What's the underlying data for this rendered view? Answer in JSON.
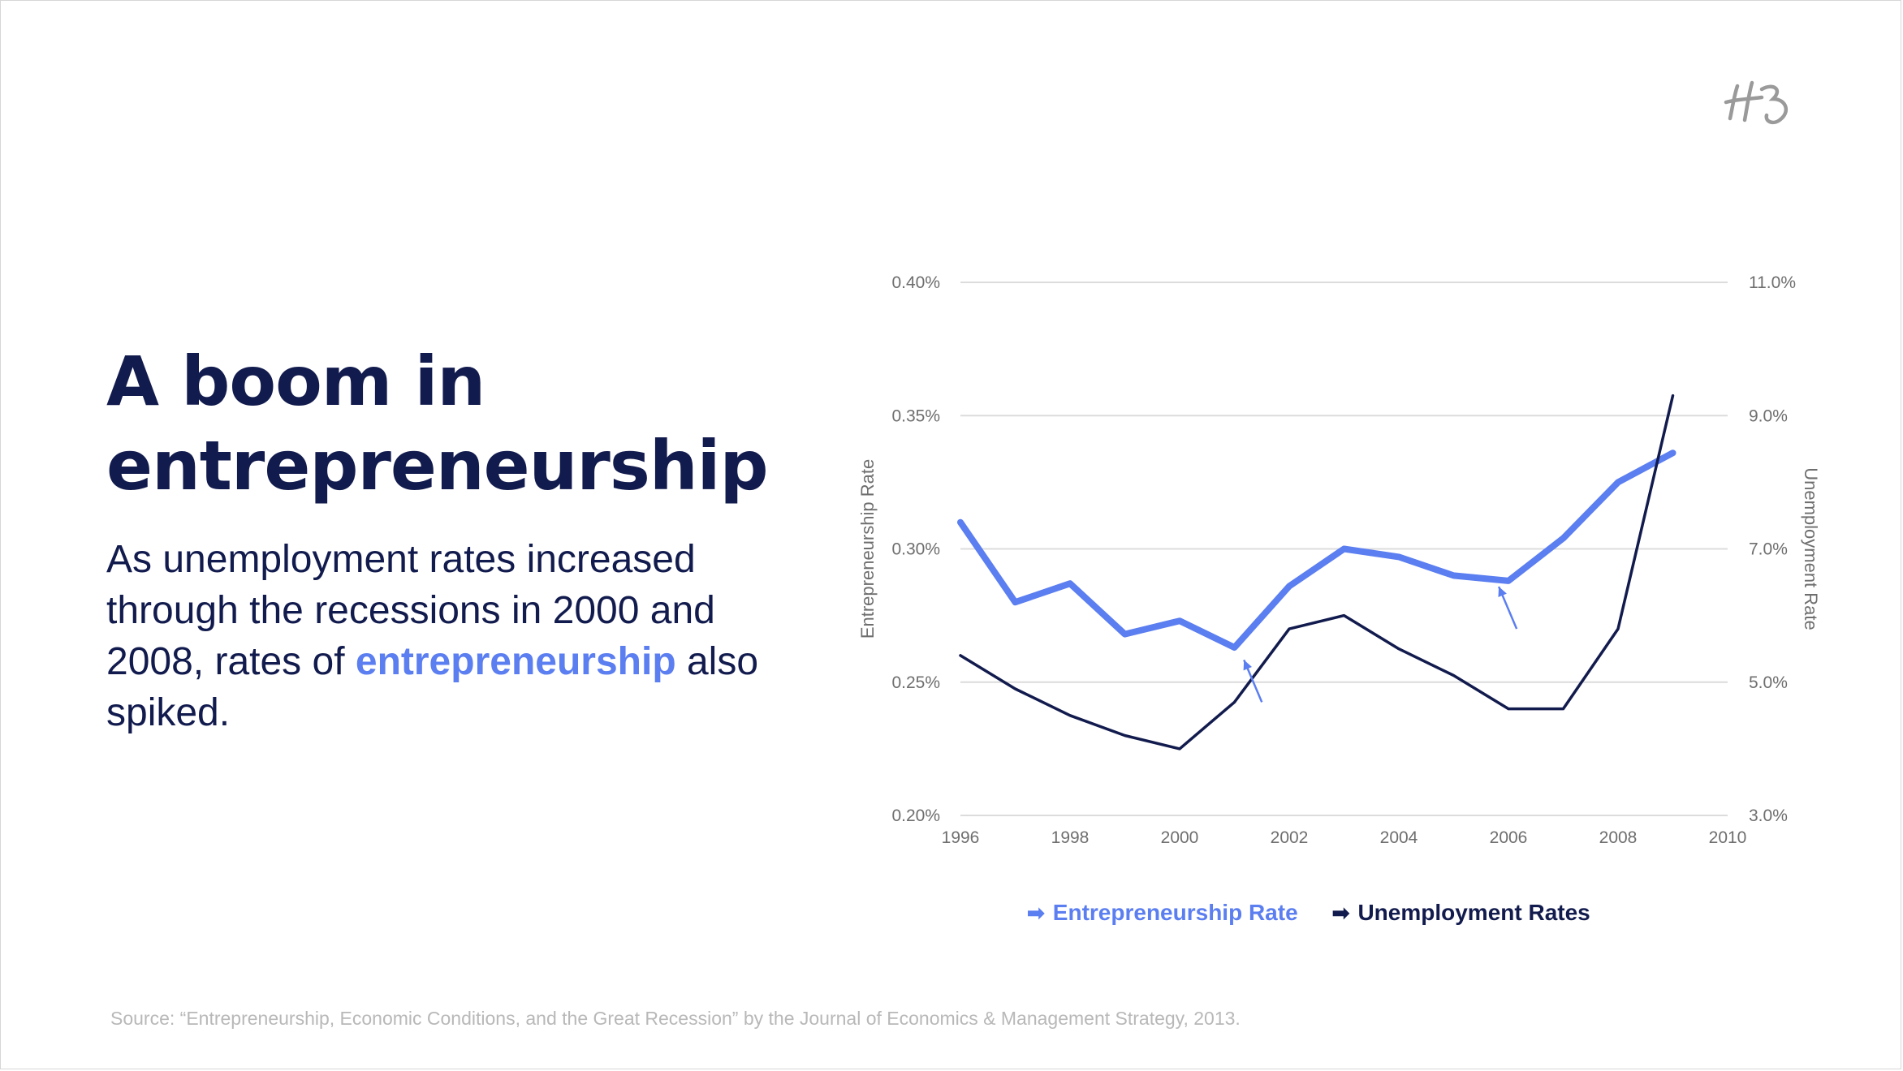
{
  "headline": {
    "line1": "A boom in",
    "line2": "entrepreneurship"
  },
  "body": {
    "part1": "As unemployment rates increased through the recessions in 2000 and 2008, rates of ",
    "highlight": "entrepreneurship",
    "part2": " also spiked."
  },
  "logo": {
    "text": "HB",
    "icon": "hb-logo-icon"
  },
  "colors": {
    "navy": "#121b4d",
    "accent": "#5b7ef0",
    "grid": "#dcdcdc",
    "axis_text": "#6e6e6e",
    "source": "#b8b8b8"
  },
  "legend": {
    "items": [
      {
        "label": "Entrepreneurship Rate",
        "icon": "arrow-right-icon",
        "color": "#5b7ef0"
      },
      {
        "label": "Unemployment Rates",
        "icon": "arrow-right-icon",
        "color": "#121b4d"
      }
    ]
  },
  "source": "Source: “Entrepreneurship, Economic Conditions, and the Great Recession” by the Journal of Economics & Management Strategy, 2013.",
  "chart_data": {
    "type": "line",
    "title": "",
    "xlabel": "",
    "ylabel": "Entrepreneurship Rate",
    "y2label": "Unemployment Rate",
    "xlim": [
      1996,
      2010
    ],
    "ylim": [
      0.2,
      0.4
    ],
    "y2lim": [
      3.0,
      11.0
    ],
    "grid": true,
    "legend_position": "bottom",
    "x_ticks": [
      "1996",
      "1998",
      "2000",
      "2002",
      "2004",
      "2006",
      "2008",
      "2010"
    ],
    "y_ticks": [
      "0.20%",
      "0.25%",
      "0.30%",
      "0.35%",
      "0.40%"
    ],
    "y2_ticks": [
      "3.0%",
      "5.0%",
      "7.0%",
      "9.0%",
      "11.0%"
    ],
    "series": [
      {
        "name": "Entrepreneurship Rate",
        "axis": "left",
        "color": "#5b7ef0",
        "x": [
          1996,
          1997,
          1998,
          1999,
          2000,
          2001,
          2002,
          2003,
          2004,
          2005,
          2006,
          2007,
          2008,
          2009
        ],
        "y": [
          0.31,
          0.28,
          0.287,
          0.268,
          0.273,
          0.263,
          0.286,
          0.3,
          0.297,
          0.29,
          0.288,
          0.304,
          0.325,
          0.336
        ]
      },
      {
        "name": "Unemployment Rates",
        "axis": "right",
        "color": "#121b4d",
        "x": [
          1996,
          1997,
          1998,
          1999,
          2000,
          2001,
          2002,
          2003,
          2004,
          2005,
          2006,
          2007,
          2008,
          2009
        ],
        "y": [
          5.4,
          4.9,
          4.5,
          4.2,
          4.0,
          4.7,
          5.8,
          6.0,
          5.5,
          5.1,
          4.6,
          4.6,
          5.8,
          9.3
        ]
      }
    ],
    "annotations": [
      {
        "type": "arrow",
        "x": 2001.5,
        "y2": 4.7,
        "points_to": "Entrepreneurship Rate"
      },
      {
        "type": "arrow",
        "x": 2006.15,
        "y2": 5.8,
        "points_to": "Entrepreneurship Rate"
      }
    ]
  }
}
